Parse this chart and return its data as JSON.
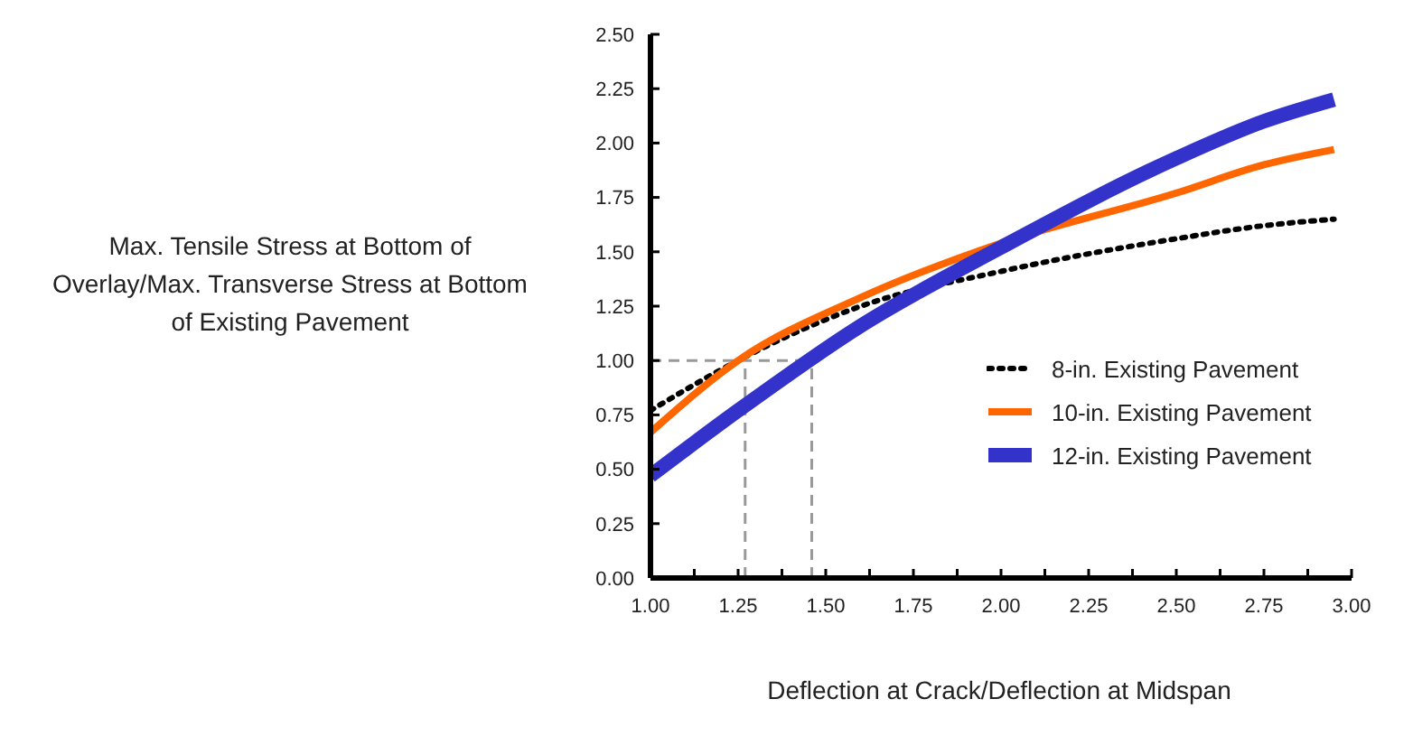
{
  "chart_data": {
    "type": "line",
    "xlabel": "Deflection at Crack/Deflection at Midspan",
    "ylabel": "Max. Tensile Stress at Bottom of Overlay/Max. Transverse Stress at Bottom of Existing Pavement",
    "x": [
      1.0,
      1.25,
      1.6,
      2.0,
      2.5,
      2.75,
      2.95
    ],
    "series": [
      {
        "name": "8-in. Existing Pavement",
        "color": "#000000",
        "line_style": "dotted",
        "values": [
          0.77,
          1.0,
          1.25,
          1.41,
          1.56,
          1.62,
          1.65
        ]
      },
      {
        "name": "10-in. Existing Pavement",
        "color": "#ff6600",
        "line_style": "solid",
        "values": [
          0.67,
          1.0,
          1.29,
          1.54,
          1.77,
          1.9,
          1.97
        ]
      },
      {
        "name": "12-in. Existing Pavement",
        "color": "#3333cc",
        "line_style": "solid",
        "values": [
          0.47,
          0.77,
          1.16,
          1.52,
          1.93,
          2.1,
          2.2
        ]
      }
    ],
    "xlim": [
      1.0,
      3.0
    ],
    "ylim": [
      0,
      2.5
    ],
    "xticks": [
      {
        "value": 1.0,
        "label": "1.00"
      },
      {
        "value": 1.125,
        "label": null
      },
      {
        "value": 1.25,
        "label": "1.25"
      },
      {
        "value": 1.375,
        "label": null
      },
      {
        "value": 1.5,
        "label": "1.50"
      },
      {
        "value": 1.625,
        "label": null
      },
      {
        "value": 1.75,
        "label": "1.75"
      },
      {
        "value": 1.875,
        "label": null
      },
      {
        "value": 2.0,
        "label": "2.00"
      },
      {
        "value": 2.125,
        "label": null
      },
      {
        "value": 2.25,
        "label": "2.25"
      },
      {
        "value": 2.375,
        "label": null
      },
      {
        "value": 2.5,
        "label": "2.50"
      },
      {
        "value": 2.625,
        "label": null
      },
      {
        "value": 2.75,
        "label": "2.75"
      },
      {
        "value": 2.875,
        "label": null
      },
      {
        "value": 3.0,
        "label": "3.00"
      }
    ],
    "yticks": [
      {
        "value": 0,
        "label": "0.00"
      },
      {
        "value": 0.25,
        "label": "0.25"
      },
      {
        "value": 0.5,
        "label": "0.50"
      },
      {
        "value": 0.75,
        "label": "0.75"
      },
      {
        "value": 1.0,
        "label": "1.00"
      },
      {
        "value": 1.25,
        "label": "1.25"
      },
      {
        "value": 1.5,
        "label": "1.50"
      },
      {
        "value": 1.75,
        "label": "1.75"
      },
      {
        "value": 2.0,
        "label": "2.00"
      },
      {
        "value": 2.25,
        "label": "2.25"
      },
      {
        "value": 2.5,
        "label": "2.50"
      }
    ],
    "ref_lines": [
      {
        "axis": "y",
        "value": 1.0,
        "color": "#999999",
        "line_style": "dashed"
      },
      {
        "axis": "x",
        "value": 1.27,
        "color": "#999999",
        "line_style": "dashed"
      },
      {
        "axis": "x",
        "value": 1.46,
        "color": "#999999",
        "line_style": "dashed"
      }
    ],
    "grid": false,
    "legend": "right",
    "marker": "none"
  }
}
